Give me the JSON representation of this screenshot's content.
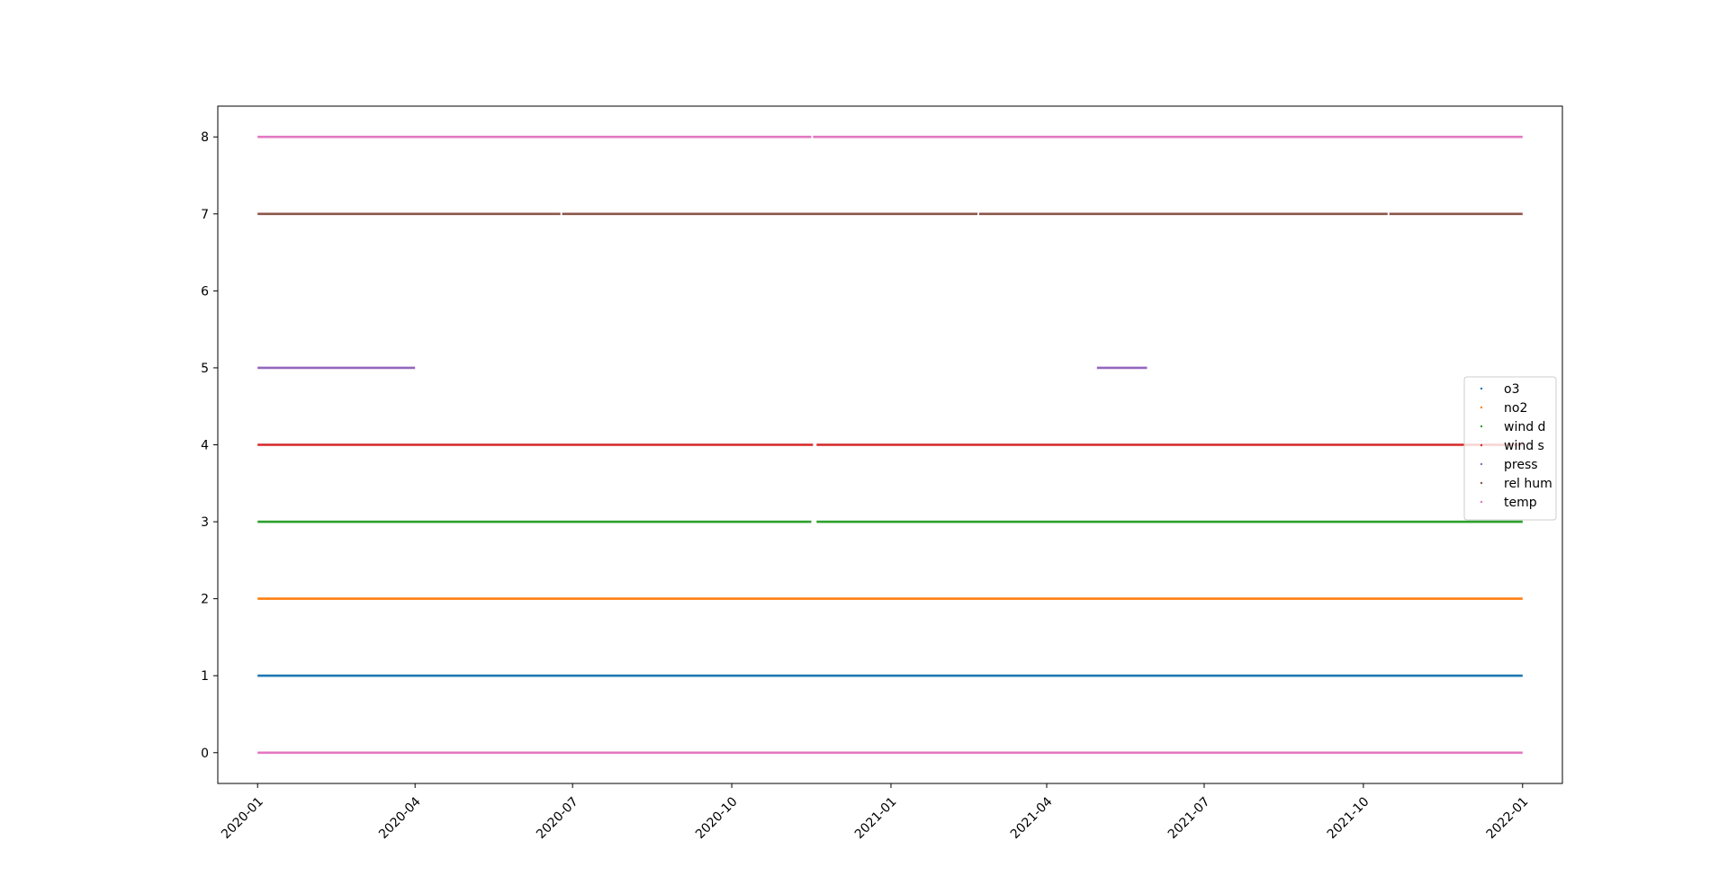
{
  "chart_data": {
    "type": "scatter",
    "title": "",
    "xlabel": "",
    "ylabel": "",
    "x_axis": {
      "kind": "date",
      "range": [
        "2019-12-09",
        "2022-01-24"
      ],
      "ticks": [
        "2020-01",
        "2020-04",
        "2020-07",
        "2020-10",
        "2021-01",
        "2021-04",
        "2021-07",
        "2021-10",
        "2022-01"
      ],
      "tick_dates": [
        "2020-01-01",
        "2020-04-01",
        "2020-07-01",
        "2020-10-01",
        "2021-01-01",
        "2021-04-01",
        "2021-07-01",
        "2021-10-01",
        "2022-01-01"
      ]
    },
    "y_axis": {
      "range": [
        -0.4,
        8.4
      ],
      "ticks": [
        0,
        1,
        2,
        3,
        4,
        5,
        6,
        7,
        8
      ]
    },
    "grid": false,
    "legend": {
      "placement": "right",
      "entries": [
        "o3",
        "no2",
        "wind d",
        "wind s",
        "press",
        "rel hum",
        "temp"
      ]
    },
    "series_colors": {
      "o3": "#1f77b4",
      "no2": "#ff7f0e",
      "wind d": "#2ca02c",
      "wind s": "#d62728",
      "press": "#9467bd",
      "rel hum": "#8c564b",
      "temp": "#e377c2"
    },
    "series": [
      {
        "name": "o3",
        "y": 1,
        "color": "#1f77b4",
        "segments": [
          [
            "2020-01-01",
            "2022-01-01"
          ]
        ]
      },
      {
        "name": "no2",
        "y": 2,
        "color": "#ff7f0e",
        "segments": [
          [
            "2020-01-01",
            "2022-01-01"
          ]
        ]
      },
      {
        "name": "wind d",
        "y": 3,
        "color": "#2ca02c",
        "segments": [
          [
            "2020-01-01",
            "2020-11-16"
          ],
          [
            "2020-11-19",
            "2022-01-01"
          ]
        ]
      },
      {
        "name": "wind s",
        "y": 4,
        "color": "#d62728",
        "segments": [
          [
            "2020-01-01",
            "2020-11-17"
          ],
          [
            "2020-11-19",
            "2022-01-01"
          ]
        ]
      },
      {
        "name": "press",
        "y": 5,
        "color": "#9467bd",
        "segments": [
          [
            "2020-01-01",
            "2020-04-01"
          ],
          [
            "2021-04-30",
            "2021-05-29"
          ]
        ]
      },
      {
        "name": "rel hum",
        "y": 7,
        "color": "#8c564b",
        "segments": [
          [
            "2020-01-01",
            "2020-06-24"
          ],
          [
            "2020-06-25",
            "2021-02-20"
          ],
          [
            "2021-02-21",
            "2021-10-15"
          ],
          [
            "2021-10-16",
            "2022-01-01"
          ]
        ]
      },
      {
        "name": "temp",
        "y": 8,
        "color": "#e377c2",
        "segments": [
          [
            "2020-01-01",
            "2020-11-16"
          ],
          [
            "2020-11-17",
            "2022-01-01"
          ]
        ]
      },
      {
        "name": "",
        "y": 0,
        "color": "#e377c2",
        "segments": [
          [
            "2020-01-01",
            "2022-01-01"
          ]
        ]
      }
    ]
  }
}
